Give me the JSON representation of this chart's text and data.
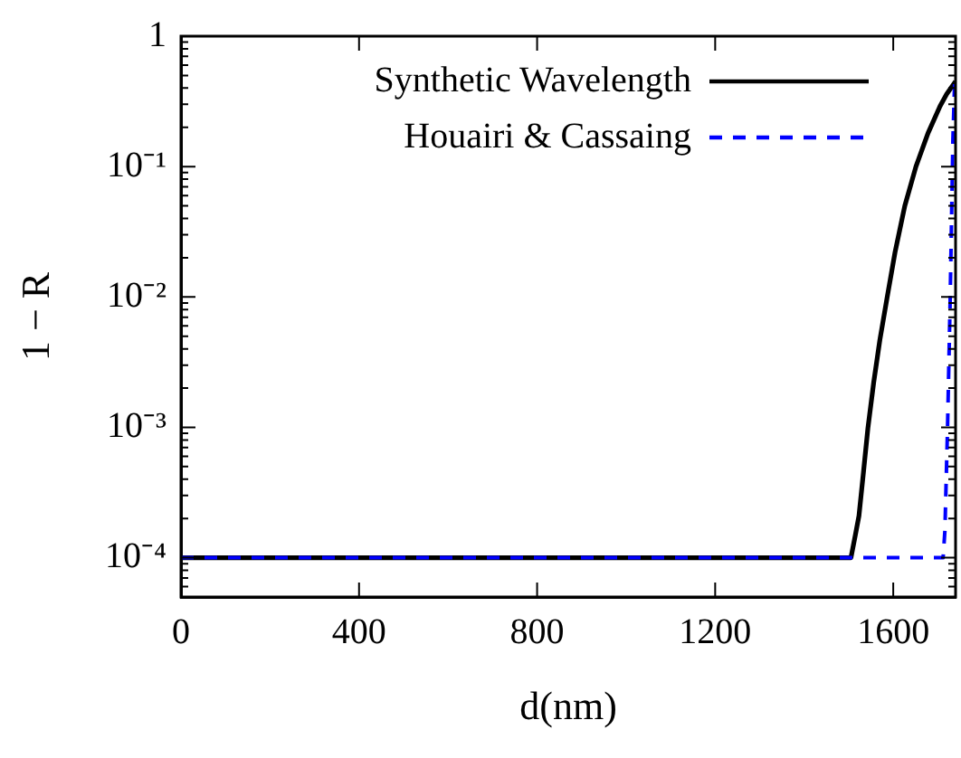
{
  "chart_data": {
    "type": "line",
    "xlabel": "d(nm)",
    "ylabel": "1 − R",
    "log": "y",
    "grid": false,
    "legend": "top right",
    "marker": "none",
    "xlim": [
      0,
      1740
    ],
    "xticks": [
      0,
      400,
      800,
      1200,
      1600
    ],
    "ylim": [
      5e-05,
      1
    ],
    "yticks": [
      {
        "value": 5e-05,
        "label": null
      },
      {
        "value": 6e-05,
        "label": null
      },
      {
        "value": 7e-05,
        "label": null
      },
      {
        "value": 8e-05,
        "label": null
      },
      {
        "value": 9e-05,
        "label": null
      },
      {
        "value": 0.0001,
        "label": "10⁻⁴"
      },
      {
        "value": 0.0002,
        "label": null
      },
      {
        "value": 0.0003,
        "label": null
      },
      {
        "value": 0.0004,
        "label": null
      },
      {
        "value": 0.0005,
        "label": null
      },
      {
        "value": 0.0006,
        "label": null
      },
      {
        "value": 0.0007,
        "label": null
      },
      {
        "value": 0.0008,
        "label": null
      },
      {
        "value": 0.0009,
        "label": null
      },
      {
        "value": 0.001,
        "label": "10⁻³"
      },
      {
        "value": 0.002,
        "label": null
      },
      {
        "value": 0.003,
        "label": null
      },
      {
        "value": 0.004,
        "label": null
      },
      {
        "value": 0.005,
        "label": null
      },
      {
        "value": 0.006,
        "label": null
      },
      {
        "value": 0.007,
        "label": null
      },
      {
        "value": 0.008,
        "label": null
      },
      {
        "value": 0.009,
        "label": null
      },
      {
        "value": 0.01,
        "label": "10⁻²"
      },
      {
        "value": 0.02,
        "label": null
      },
      {
        "value": 0.03,
        "label": null
      },
      {
        "value": 0.04,
        "label": null
      },
      {
        "value": 0.05,
        "label": null
      },
      {
        "value": 0.06,
        "label": null
      },
      {
        "value": 0.07,
        "label": null
      },
      {
        "value": 0.08,
        "label": null
      },
      {
        "value": 0.09,
        "label": null
      },
      {
        "value": 0.1,
        "label": "10⁻¹"
      },
      {
        "value": 0.2,
        "label": null
      },
      {
        "value": 0.3,
        "label": null
      },
      {
        "value": 0.4,
        "label": null
      },
      {
        "value": 0.5,
        "label": null
      },
      {
        "value": 0.6,
        "label": null
      },
      {
        "value": 0.7,
        "label": null
      },
      {
        "value": 0.8,
        "label": null
      },
      {
        "value": 0.9,
        "label": null
      },
      {
        "value": 1,
        "label": "1"
      }
    ],
    "series": [
      {
        "name": "Synthetic Wavelength",
        "color": "#000000",
        "line_style": "solid",
        "x": [
          0,
          1505,
          1515,
          1523,
          1533,
          1543,
          1556,
          1570,
          1586,
          1604,
          1626,
          1651,
          1678,
          1705,
          1720,
          1740
        ],
        "values": [
          0.0001,
          0.0001,
          0.00015,
          0.00021,
          0.00045,
          0.00098,
          0.0022,
          0.0047,
          0.0098,
          0.022,
          0.05,
          0.1,
          0.18,
          0.29,
          0.36,
          0.45
        ]
      },
      {
        "name": "Houairi & Cassaing",
        "color": "#0000ff",
        "line_style": "dashed",
        "x": [
          0,
          1712,
          1716,
          1722,
          1728,
          1734,
          1738
        ],
        "values": [
          0.0001,
          0.0001,
          0.00016,
          0.001,
          0.01,
          0.16,
          0.45
        ]
      }
    ]
  }
}
